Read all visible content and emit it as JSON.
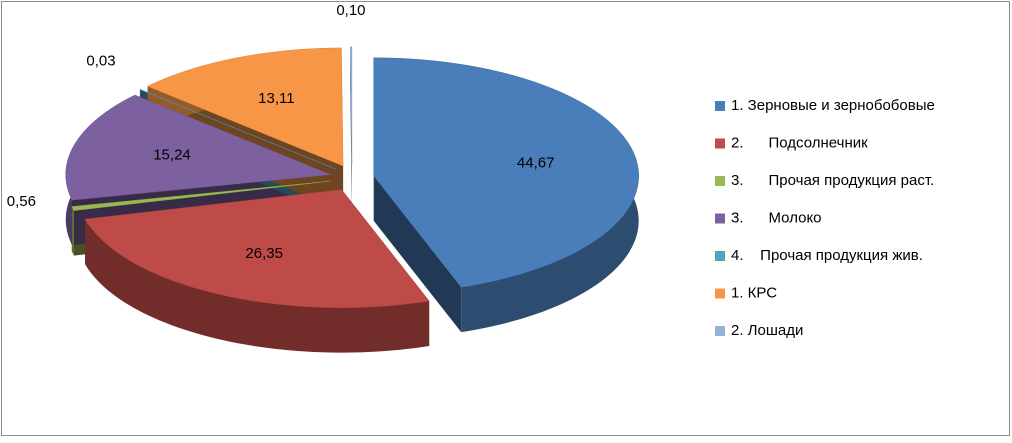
{
  "chart_data": {
    "type": "pie",
    "categories": [
      "1. Зерновые и зернобобовые",
      "2.      Подсолнечник",
      "3.      Прочая продукция раст.",
      "3.      Молоко",
      "4.    Прочая продукция жив.",
      "1. КРС",
      "2. Лошади"
    ],
    "values": [
      44.67,
      26.35,
      0.56,
      15.24,
      0.03,
      13.11,
      0.1
    ],
    "value_labels": [
      "44,67",
      "26,35",
      "0,56",
      "15,24",
      "0,03",
      "13,11",
      "0,10"
    ],
    "colors": [
      "#4a7ebb",
      "#be4b48",
      "#98b954",
      "#7d60a0",
      "#46aac5",
      "#f79646",
      "#95b3d7"
    ],
    "legend": "right"
  }
}
